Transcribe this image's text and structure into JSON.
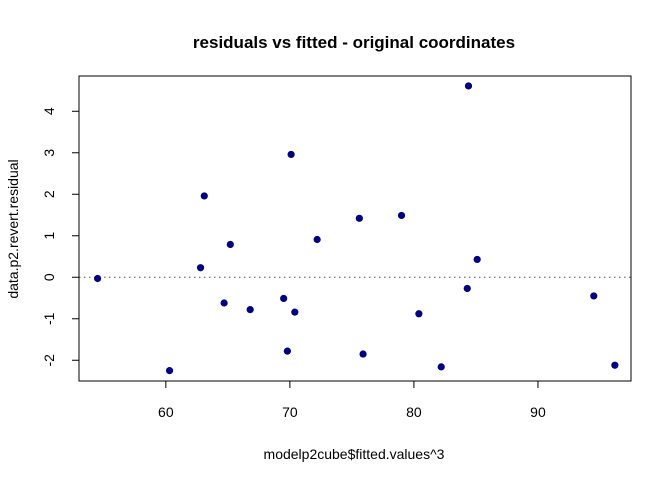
{
  "chart_data": {
    "type": "scatter",
    "title": "residuals vs fitted - original coordinates",
    "xlabel": "modelp2cube$fitted.values^3",
    "ylabel": "data.p2.revert.residual",
    "xlim": [
      53,
      97.5
    ],
    "ylim": [
      -2.5,
      4.85
    ],
    "xticks": [
      60,
      70,
      80,
      90
    ],
    "yticks": [
      -2,
      -1,
      0,
      1,
      2,
      3,
      4
    ],
    "reference_line": {
      "y": 0,
      "style": "dotted"
    },
    "point_color": "#000080",
    "grid": false,
    "points": [
      {
        "x": 54.5,
        "y": -0.03
      },
      {
        "x": 60.3,
        "y": -2.25
      },
      {
        "x": 62.8,
        "y": 0.23
      },
      {
        "x": 63.1,
        "y": 1.96
      },
      {
        "x": 64.7,
        "y": -0.62
      },
      {
        "x": 65.2,
        "y": 0.79
      },
      {
        "x": 66.8,
        "y": -0.78
      },
      {
        "x": 69.5,
        "y": -0.51
      },
      {
        "x": 69.8,
        "y": -1.78
      },
      {
        "x": 70.1,
        "y": 2.96
      },
      {
        "x": 70.4,
        "y": -0.84
      },
      {
        "x": 72.2,
        "y": 0.91
      },
      {
        "x": 75.6,
        "y": 1.42
      },
      {
        "x": 75.9,
        "y": -1.85
      },
      {
        "x": 79.0,
        "y": 1.49
      },
      {
        "x": 80.4,
        "y": -0.88
      },
      {
        "x": 82.2,
        "y": -2.16
      },
      {
        "x": 84.3,
        "y": -0.27
      },
      {
        "x": 84.4,
        "y": 4.61
      },
      {
        "x": 85.1,
        "y": 0.43
      },
      {
        "x": 94.5,
        "y": -0.45
      },
      {
        "x": 96.2,
        "y": -2.12
      }
    ]
  }
}
